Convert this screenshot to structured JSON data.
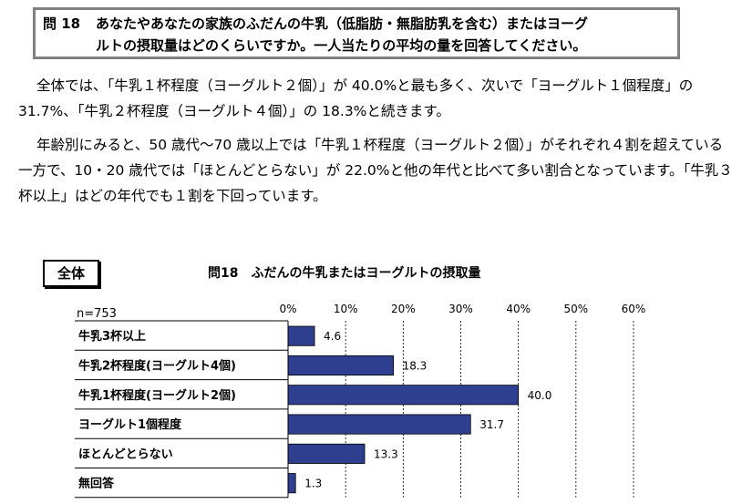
{
  "question": {
    "number": "問 18",
    "line1": "あなたやあなたの家族のふだんの牛乳（低脂肪・無脂肪乳を含む）またはヨーグ",
    "line2": "ルトの摂取量はどのくらいですか。一人当たりの平均の量を回答してください。"
  },
  "paragraph1": "全体では、「牛乳１杯程度（ヨーグルト２個）」が 40.0%と最も多く、次いで「ヨーグルト１個程度」の 31.7%、「牛乳２杯程度（ヨーグルト４個）」の 18.3%と続きます。",
  "paragraph2": "年齢別にみると、50 歳代〜70 歳以上では「牛乳１杯程度（ヨーグルト２個）」がそれぞれ４割を超えている一方で、10・20 歳代では「ほとんどとらない」が 22.0%と他の年代と比べて多い割合となっています。「牛乳３杯以上」はどの年代でも１割を下回っています。",
  "badge": "全体",
  "chart_data": {
    "type": "bar",
    "orientation": "horizontal",
    "title": "問18　ふだんの牛乳またはヨーグルトの摂取量",
    "sample_size": "n=753",
    "categories": [
      "牛乳3杯以上",
      "牛乳2杯程度(ヨーグルト4個)",
      "牛乳1杯程度(ヨーグルト2個)",
      "ヨーグルト1個程度",
      "ほとんどとらない",
      "無回答"
    ],
    "values": [
      4.6,
      18.3,
      40.0,
      31.7,
      13.3,
      1.3
    ],
    "value_labels": [
      "4.6",
      "18.3",
      "40.0",
      "31.7",
      "13.3",
      "1.3"
    ],
    "xlim": [
      0,
      60
    ],
    "ticks": [
      "0%",
      "10%",
      "20%",
      "30%",
      "40%",
      "50%",
      "60%"
    ],
    "grid": true,
    "bar_color": "#2E3F8F"
  }
}
